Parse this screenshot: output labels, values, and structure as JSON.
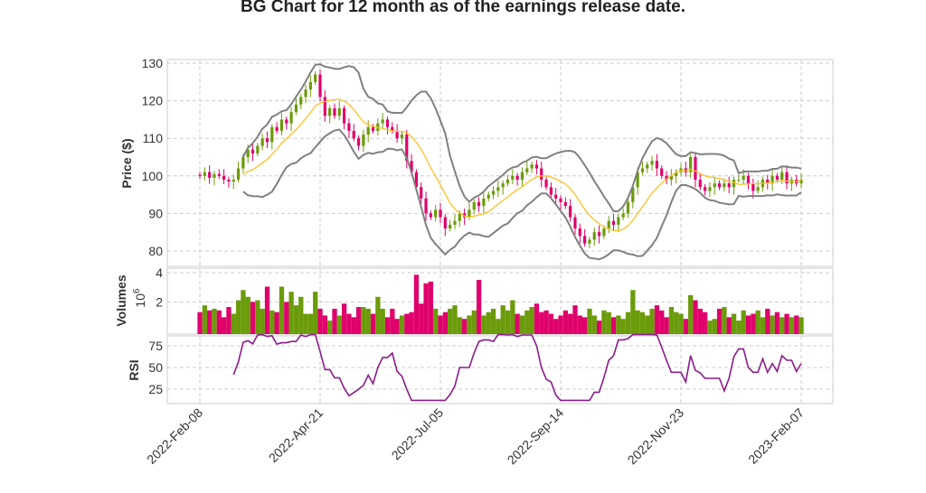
{
  "chart_data": {
    "type": "candlestick",
    "title": "BG Chart for 12 month as of the earnings release date.",
    "price_panel": {
      "ylabel": "Price ($)",
      "yticks": [
        80,
        90,
        100,
        110,
        120,
        130
      ],
      "ylim": [
        78,
        131
      ]
    },
    "volume_panel": {
      "ylabel": "Volumes",
      "scale_label": "10",
      "scale_exp": "6",
      "yticks": [
        2,
        4
      ],
      "ylim": [
        0,
        4
      ]
    },
    "rsi_panel": {
      "ylabel": "RSI",
      "yticks": [
        25,
        50,
        75
      ],
      "ylim": [
        10,
        90
      ]
    },
    "xticks": [
      "2022-Feb-08",
      "2022-Apr-21",
      "2022-Jul-05",
      "2022-Sep-14",
      "2022-Nov-23",
      "2023-Feb-07"
    ],
    "grid": true,
    "overlays": [
      "20-period moving average",
      "Bollinger bands"
    ],
    "colors": {
      "up": "#6b9b0a",
      "down": "#e0006b",
      "ma": "#ffc125",
      "bands": "#808080",
      "rsi": "#8b1a8b"
    },
    "close": [
      100,
      101,
      99.5,
      100.5,
      100,
      99,
      98.5,
      99,
      102,
      105,
      107,
      106,
      108,
      110,
      109,
      113,
      112,
      115,
      114,
      117,
      119,
      121,
      123,
      125,
      127,
      121,
      116,
      118,
      116,
      118,
      114,
      112,
      110,
      108,
      111,
      113,
      112,
      114,
      115,
      113,
      112,
      110,
      111,
      104,
      101,
      97,
      94,
      90,
      89,
      91,
      89,
      86,
      87,
      88,
      90,
      89,
      91,
      93,
      92,
      94,
      95,
      96,
      97,
      98,
      99,
      100,
      99,
      101,
      102,
      103,
      102,
      99,
      97,
      95,
      94,
      93,
      92,
      89,
      86,
      84,
      82,
      83,
      85,
      84,
      86,
      88,
      87,
      89,
      90,
      93,
      97,
      101,
      102,
      103,
      104,
      102,
      100,
      99,
      100,
      101,
      102,
      101,
      105,
      99,
      97,
      96,
      97,
      98,
      97,
      98,
      97,
      99,
      99,
      100,
      98,
      96,
      97,
      99,
      98,
      100,
      99,
      101,
      98,
      99,
      98,
      99
    ],
    "volume_millions": [
      1.4,
      1.8,
      1.5,
      1.6,
      1.5,
      1.1,
      1.7,
      1.3,
      2.1,
      2.7,
      2.3,
      2.0,
      2.1,
      1.6,
      2.9,
      1.5,
      1.4,
      2.9,
      2.0,
      2.6,
      1.8,
      2.3,
      1.3,
      1.3,
      2.6,
      1.6,
      1.2,
      0.9,
      1.6,
      1.2,
      1.9,
      1.3,
      1.1,
      1.7,
      1.7,
      1.6,
      1.3,
      2.3,
      1.6,
      1.1,
      1.6,
      1.0,
      1.2,
      1.3,
      1.4,
      3.6,
      1.9,
      3.1,
      3.2,
      1.6,
      1.2,
      1.4,
      1.6,
      1.8,
      1.1,
      1.0,
      1.2,
      1.5,
      3.3,
      1.2,
      1.4,
      1.6,
      1.0,
      1.8,
      1.5,
      2.1,
      1.3,
      1.2,
      1.5,
      1.7,
      1.9,
      1.4,
      1.5,
      1.3,
      1.0,
      1.2,
      1.5,
      1.3,
      1.8,
      1.2,
      1.1,
      1.6,
      1.2,
      0.9,
      1.5,
      1.4,
      1.1,
      1.2,
      1.0,
      1.4,
      2.7,
      1.5,
      1.4,
      1.2,
      1.6,
      1.8,
      1.5,
      1.1,
      1.7,
      1.4,
      1.3,
      1.0,
      2.4,
      2.1,
      1.6,
      1.4,
      0.9,
      1.0,
      1.6,
      1.7,
      1.1,
      1.3,
      0.9,
      1.5,
      1.2,
      1.3,
      1.5,
      1.1,
      1.6,
      1.2,
      1.4,
      1.1,
      1.3,
      1.1,
      1.2,
      1.1
    ]
  }
}
